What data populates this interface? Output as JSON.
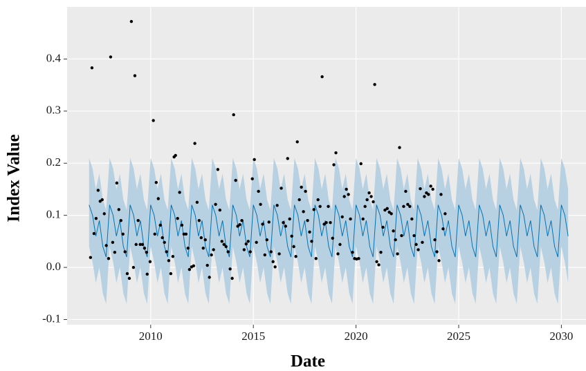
{
  "chart_data": {
    "type": "line",
    "x_label": "Date",
    "y_label": "Index Value",
    "xlim": [
      2005.93,
      2031.2
    ],
    "ylim": [
      -0.11,
      0.5
    ],
    "xticks": [
      2010,
      2015,
      2020,
      2025,
      2030
    ],
    "yticks": [
      -0.1,
      {
        "value": 0,
        "label": "0.0"
      },
      0.1,
      0.2,
      0.3,
      0.4
    ],
    "grid": true,
    "series": [
      {
        "type": "line",
        "color": "#0072b2",
        "band_color": "#b7d1e3",
        "x": [
          2007,
          2007.17,
          2007.33,
          2007.5,
          2007.67,
          2007.83,
          2008,
          2008.17,
          2008.33,
          2008.5,
          2008.67,
          2008.83,
          2009,
          2009.17,
          2009.33,
          2009.5,
          2009.67,
          2009.83,
          2010,
          2010.17,
          2010.33,
          2010.5,
          2010.67,
          2010.83,
          2011,
          2011.17,
          2011.33,
          2011.5,
          2011.67,
          2011.83,
          2012,
          2012.17,
          2012.33,
          2012.5,
          2012.67,
          2012.83,
          2013,
          2013.17,
          2013.33,
          2013.5,
          2013.67,
          2013.83,
          2014,
          2014.17,
          2014.33,
          2014.5,
          2014.67,
          2014.83,
          2015,
          2015.17,
          2015.33,
          2015.5,
          2015.67,
          2015.83,
          2016,
          2016.17,
          2016.33,
          2016.5,
          2016.67,
          2016.83,
          2017,
          2017.17,
          2017.33,
          2017.5,
          2017.67,
          2017.83,
          2018,
          2018.17,
          2018.33,
          2018.5,
          2018.67,
          2018.83,
          2019,
          2019.17,
          2019.33,
          2019.5,
          2019.67,
          2019.83,
          2020,
          2020.17,
          2020.33,
          2020.5,
          2020.67,
          2020.83,
          2021,
          2021.17,
          2021.33,
          2021.5,
          2021.67,
          2021.83,
          2022,
          2022.17,
          2022.33,
          2022.5,
          2022.67,
          2022.83,
          2023,
          2023.17,
          2023.33,
          2023.5,
          2023.67,
          2023.83,
          2024,
          2024.17,
          2024.33,
          2024.5,
          2024.67,
          2024.83,
          2025,
          2025.17,
          2025.33,
          2025.5,
          2025.67,
          2025.83,
          2026,
          2026.17,
          2026.33,
          2026.5,
          2026.67,
          2026.83,
          2027,
          2027.17,
          2027.33,
          2027.5,
          2027.67,
          2027.83,
          2028,
          2028.17,
          2028.33,
          2028.5,
          2028.67,
          2028.83,
          2029,
          2029.17,
          2029.33,
          2029.5,
          2029.67,
          2029.83,
          2030,
          2030.17,
          2030.33
        ],
        "values": [
          0.12,
          0.1,
          0.06,
          0.09,
          0.04,
          0.02,
          0.12,
          0.1,
          0.06,
          0.09,
          0.04,
          0.02,
          0.12,
          0.1,
          0.06,
          0.09,
          0.04,
          0.02,
          0.12,
          0.1,
          0.06,
          0.09,
          0.04,
          0.02,
          0.12,
          0.1,
          0.06,
          0.09,
          0.04,
          0.02,
          0.12,
          0.1,
          0.06,
          0.09,
          0.04,
          0.02,
          0.12,
          0.1,
          0.06,
          0.09,
          0.04,
          0.02,
          0.12,
          0.1,
          0.06,
          0.09,
          0.04,
          0.02,
          0.12,
          0.1,
          0.06,
          0.09,
          0.04,
          0.02,
          0.12,
          0.1,
          0.06,
          0.09,
          0.04,
          0.02,
          0.12,
          0.1,
          0.06,
          0.09,
          0.04,
          0.02,
          0.12,
          0.1,
          0.06,
          0.09,
          0.04,
          0.02,
          0.12,
          0.1,
          0.06,
          0.09,
          0.04,
          0.02,
          0.12,
          0.1,
          0.06,
          0.09,
          0.04,
          0.02,
          0.12,
          0.1,
          0.06,
          0.09,
          0.04,
          0.02,
          0.12,
          0.1,
          0.06,
          0.09,
          0.04,
          0.02,
          0.12,
          0.1,
          0.06,
          0.09,
          0.04,
          0.02,
          0.12,
          0.1,
          0.06,
          0.09,
          0.04,
          0.02,
          0.12,
          0.1,
          0.06,
          0.09,
          0.04,
          0.02,
          0.12,
          0.1,
          0.06,
          0.09,
          0.04,
          0.02,
          0.12,
          0.1,
          0.06,
          0.09,
          0.04,
          0.02,
          0.12,
          0.1,
          0.06,
          0.09,
          0.04,
          0.02,
          0.12,
          0.1,
          0.06,
          0.09,
          0.04,
          0.02,
          0.12,
          0.1,
          0.06
        ],
        "lower": [
          0.04,
          0.01,
          -0.03,
          0,
          -0.05,
          -0.07,
          0.04,
          0.01,
          -0.03,
          0,
          -0.05,
          -0.07,
          0.04,
          0.01,
          -0.03,
          0,
          -0.05,
          -0.07,
          0.04,
          0.01,
          -0.03,
          0,
          -0.05,
          -0.07,
          0.04,
          0.01,
          -0.03,
          0,
          -0.05,
          -0.07,
          0.04,
          0.01,
          -0.03,
          0,
          -0.05,
          -0.07,
          0.04,
          0.01,
          -0.03,
          0,
          -0.05,
          -0.07,
          0.04,
          0.01,
          -0.03,
          0,
          -0.05,
          -0.07,
          0.04,
          0.01,
          -0.03,
          0,
          -0.05,
          -0.07,
          0.04,
          0.01,
          -0.03,
          0,
          -0.05,
          -0.07,
          0.04,
          0.01,
          -0.03,
          0,
          -0.05,
          -0.07,
          0.04,
          0.01,
          -0.03,
          0,
          -0.05,
          -0.07,
          0.04,
          0.01,
          -0.03,
          0,
          -0.05,
          -0.07,
          0.04,
          0.01,
          -0.03,
          0,
          -0.05,
          -0.07,
          0.04,
          0.01,
          -0.03,
          0,
          -0.05,
          -0.07,
          0.04,
          0.01,
          -0.03,
          0,
          -0.05,
          -0.07,
          0.04,
          0.01,
          -0.03,
          0,
          -0.05,
          -0.07,
          0.04,
          0.01,
          -0.03,
          0,
          -0.05,
          -0.07,
          0.04,
          0.01,
          -0.03,
          0,
          -0.05,
          -0.07,
          0.04,
          0.01,
          -0.03,
          0,
          -0.05,
          -0.07,
          0.04,
          0.01,
          -0.03,
          0,
          -0.05,
          -0.07,
          0.04,
          0.01,
          -0.03,
          0,
          -0.05,
          -0.07,
          0.04,
          0.01,
          -0.03,
          0,
          -0.05,
          -0.07,
          0.04,
          0.01,
          -0.03
        ],
        "upper": [
          0.21,
          0.19,
          0.15,
          0.18,
          0.13,
          0.11,
          0.21,
          0.19,
          0.15,
          0.18,
          0.13,
          0.11,
          0.21,
          0.19,
          0.15,
          0.18,
          0.13,
          0.11,
          0.21,
          0.19,
          0.15,
          0.18,
          0.13,
          0.11,
          0.21,
          0.19,
          0.15,
          0.18,
          0.13,
          0.11,
          0.21,
          0.19,
          0.15,
          0.18,
          0.13,
          0.11,
          0.21,
          0.19,
          0.15,
          0.18,
          0.13,
          0.11,
          0.21,
          0.19,
          0.15,
          0.18,
          0.13,
          0.11,
          0.21,
          0.19,
          0.15,
          0.18,
          0.13,
          0.11,
          0.21,
          0.19,
          0.15,
          0.18,
          0.13,
          0.11,
          0.21,
          0.19,
          0.15,
          0.18,
          0.13,
          0.11,
          0.21,
          0.19,
          0.15,
          0.18,
          0.13,
          0.11,
          0.21,
          0.19,
          0.15,
          0.18,
          0.13,
          0.11,
          0.21,
          0.19,
          0.15,
          0.18,
          0.13,
          0.11,
          0.21,
          0.19,
          0.15,
          0.18,
          0.13,
          0.11,
          0.21,
          0.19,
          0.15,
          0.18,
          0.13,
          0.11,
          0.21,
          0.19,
          0.15,
          0.18,
          0.13,
          0.11,
          0.21,
          0.19,
          0.15,
          0.18,
          0.13,
          0.11,
          0.21,
          0.19,
          0.15,
          0.18,
          0.13,
          0.11,
          0.21,
          0.19,
          0.15,
          0.18,
          0.13,
          0.11,
          0.21,
          0.19,
          0.15,
          0.18,
          0.13,
          0.11,
          0.21,
          0.19,
          0.15,
          0.18,
          0.13,
          0.11,
          0.21,
          0.19,
          0.15,
          0.18,
          0.13,
          0.11,
          0.21,
          0.19,
          0.15
        ]
      },
      {
        "type": "scatter",
        "color": "#000000",
        "x": [
          2007.07,
          2007.14,
          2007.24,
          2007.34,
          2007.44,
          2007.54,
          2007.64,
          2007.74,
          2007.84,
          2007.95,
          2008.05,
          2008.15,
          2008.25,
          2008.35,
          2008.45,
          2008.55,
          2008.65,
          2008.75,
          2008.86,
          2008.96,
          2009.06,
          2009.16,
          2009.23,
          2009.29,
          2009.39,
          2009.49,
          2009.6,
          2009.7,
          2009.8,
          2009.83,
          2009.97,
          2010.13,
          2010.2,
          2010.27,
          2010.37,
          2010.47,
          2010.57,
          2010.67,
          2010.77,
          2010.88,
          2010.98,
          2011.08,
          2011.14,
          2011.21,
          2011.31,
          2011.41,
          2011.52,
          2011.62,
          2011.72,
          2011.82,
          2011.89,
          2011.99,
          2012.09,
          2012.15,
          2012.26,
          2012.36,
          2012.46,
          2012.56,
          2012.66,
          2012.76,
          2012.86,
          2012.96,
          2013.06,
          2013.16,
          2013.27,
          2013.37,
          2013.47,
          2013.57,
          2013.67,
          2013.77,
          2013.87,
          2013.97,
          2014.04,
          2014.14,
          2014.24,
          2014.34,
          2014.44,
          2014.55,
          2014.65,
          2014.75,
          2014.85,
          2014.95,
          2015.05,
          2015.15,
          2015.25,
          2015.35,
          2015.45,
          2015.56,
          2015.66,
          2015.76,
          2015.86,
          2015.96,
          2016.06,
          2016.16,
          2016.26,
          2016.36,
          2016.46,
          2016.57,
          2016.67,
          2016.77,
          2016.87,
          2016.97,
          2017.07,
          2017.14,
          2017.24,
          2017.34,
          2017.44,
          2017.54,
          2017.64,
          2017.74,
          2017.84,
          2017.95,
          2018.05,
          2018.15,
          2018.25,
          2018.35,
          2018.45,
          2018.55,
          2018.65,
          2018.75,
          2018.86,
          2018.92,
          2019.02,
          2019.12,
          2019.22,
          2019.33,
          2019.43,
          2019.53,
          2019.63,
          2019.73,
          2019.83,
          2019.93,
          2020.03,
          2020.13,
          2020.24,
          2020.34,
          2020.44,
          2020.54,
          2020.64,
          2020.74,
          2020.84,
          2020.91,
          2021.01,
          2021.11,
          2021.21,
          2021.31,
          2021.41,
          2021.52,
          2021.62,
          2021.72,
          2021.82,
          2021.92,
          2022.02,
          2022.12,
          2022.22,
          2022.32,
          2022.42,
          2022.52,
          2022.62,
          2022.72,
          2022.83,
          2022.93,
          2023.03,
          2023.13,
          2023.23,
          2023.33,
          2023.43,
          2023.53,
          2023.64,
          2023.74,
          2023.84,
          2023.94,
          2024.04,
          2024.14,
          2024.24,
          2024.34
        ],
        "values": [
          0.019,
          0.383,
          0.065,
          0.094,
          0.148,
          0.127,
          0.13,
          0.103,
          0.042,
          0.017,
          0.404,
          0.048,
          0.029,
          0.162,
          0.111,
          0.09,
          0.064,
          0.03,
          -0.012,
          -0.021,
          0.472,
          0,
          0.368,
          0.044,
          0.09,
          0.044,
          0.044,
          0.037,
          0.029,
          -0.013,
          0.011,
          0.282,
          0.064,
          0.163,
          0.132,
          0.081,
          0.057,
          0.048,
          0.03,
          0.013,
          -0.012,
          0.021,
          0.212,
          0.215,
          0.094,
          0.144,
          0.081,
          0.064,
          0.064,
          0.037,
          -0.004,
          0.001,
          0.003,
          0.238,
          0.125,
          0.09,
          0.057,
          0.037,
          0.053,
          0.004,
          -0.019,
          0.024,
          0.034,
          0.121,
          0.188,
          0.11,
          0.05,
          0.044,
          0.04,
          0.03,
          -0.003,
          -0.021,
          0.293,
          0.167,
          0.079,
          0.082,
          0.09,
          0.034,
          0.045,
          0.05,
          0.03,
          0.17,
          0.207,
          0.048,
          0.146,
          0.121,
          0.083,
          0.024,
          0.053,
          0.087,
          0.03,
          0.011,
          0.001,
          0.119,
          0.026,
          0.152,
          0.086,
          0.079,
          0.209,
          0.093,
          0.06,
          0.04,
          0.021,
          0.241,
          0.13,
          0.154,
          0.107,
          0.146,
          0.09,
          0.068,
          0.05,
          0.111,
          0.017,
          0.13,
          0.117,
          0.366,
          0.083,
          0.086,
          0.117,
          0.086,
          0.056,
          0.197,
          0.22,
          0.026,
          0.044,
          0.097,
          0.136,
          0.15,
          0.14,
          0.093,
          0.029,
          0.017,
          0.016,
          0.017,
          0.199,
          0.093,
          0.117,
          0.13,
          0.143,
          0.136,
          0.126,
          0.351,
          0.011,
          0.005,
          0.029,
          0.077,
          0.11,
          0.113,
          0.106,
          0.103,
          0.07,
          0.053,
          0.026,
          0.23,
          0.061,
          0.117,
          0.146,
          0.121,
          0.117,
          0.093,
          0.061,
          0.044,
          0.034,
          0.151,
          0.048,
          0.136,
          0.143,
          0.14,
          0.156,
          0.15,
          0.053,
          0.03,
          0.013,
          0.14,
          0.074,
          0.103
        ]
      }
    ]
  }
}
